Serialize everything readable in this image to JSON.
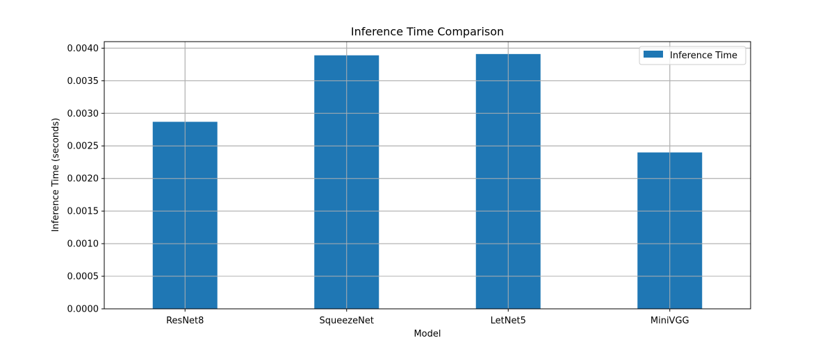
{
  "chart_data": {
    "type": "bar",
    "title": "Inference Time Comparison",
    "xlabel": "Model",
    "ylabel": "Inference Time (seconds)",
    "categories": [
      "ResNet8",
      "SqueezeNet",
      "LetNet5",
      "MiniVGG"
    ],
    "series": [
      {
        "name": "Inference Time",
        "values": [
          0.00287,
          0.00389,
          0.00391,
          0.0024
        ]
      }
    ],
    "ylim": [
      0,
      0.0041
    ],
    "yticks": [
      0,
      0.0005,
      0.001,
      0.0015,
      0.002,
      0.0025,
      0.003,
      0.0035,
      0.004
    ],
    "ytick_labels": [
      "0.0000",
      "0.0005",
      "0.0010",
      "0.0015",
      "0.0020",
      "0.0025",
      "0.0030",
      "0.0035",
      "0.0040"
    ],
    "grid": true,
    "legend_position": "top-right",
    "colors": {
      "bar": "#1f77b4",
      "grid": "#b0b0b0",
      "axis": "#000000"
    }
  }
}
